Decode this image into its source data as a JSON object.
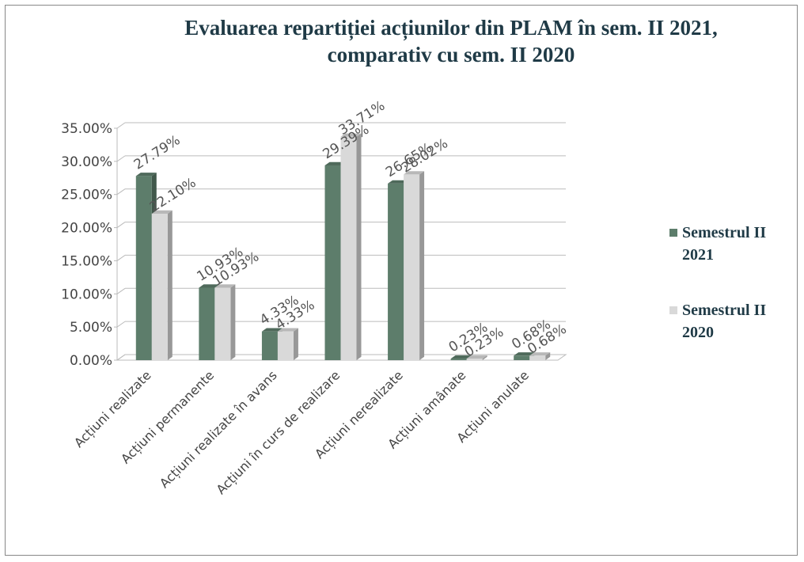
{
  "chart_data": {
    "type": "bar",
    "title": "Evaluarea repartiției acțiunilor din PLAM în sem. II 2021,\ncomparativ cu sem. II 2020",
    "categories": [
      "Acțiuni realizate",
      "Acțiuni permanente",
      "Acțiuni realizate în avans",
      "Acțiuni în curs de realizare",
      "Acțiuni nerealizate",
      "Acțiuni amânate",
      "Acțiuni anulate"
    ],
    "series": [
      {
        "name": "Semestrul II 2021",
        "color": "#5d7d6b",
        "values": [
          27.79,
          10.93,
          4.33,
          29.39,
          26.65,
          0.23,
          0.68
        ],
        "value_labels": [
          "27.79%",
          "10.93%",
          "4.33%",
          "29.39%",
          "26.65%",
          "0.23%",
          "0.68%"
        ]
      },
      {
        "name": "Semestrul II 2020",
        "color": "#d9d9d9",
        "values": [
          22.1,
          10.93,
          4.33,
          33.71,
          28.02,
          0.23,
          0.68
        ],
        "value_labels": [
          "22.10%",
          "10.93%",
          "4.33%",
          "33.71%",
          "28.02%",
          "0.23%",
          "0.68%"
        ]
      }
    ],
    "ylim": [
      0,
      35
    ],
    "yticks": [
      {
        "value": 0,
        "label": "0.00%"
      },
      {
        "value": 5,
        "label": "5.00%"
      },
      {
        "value": 10,
        "label": "10.00%"
      },
      {
        "value": 15,
        "label": "15.00%"
      },
      {
        "value": 20,
        "label": "20.00%"
      },
      {
        "value": 25,
        "label": "25.00%"
      },
      {
        "value": 30,
        "label": "30.00%"
      },
      {
        "value": 35,
        "label": "35.00%"
      }
    ],
    "grid": true,
    "legend": "right"
  }
}
